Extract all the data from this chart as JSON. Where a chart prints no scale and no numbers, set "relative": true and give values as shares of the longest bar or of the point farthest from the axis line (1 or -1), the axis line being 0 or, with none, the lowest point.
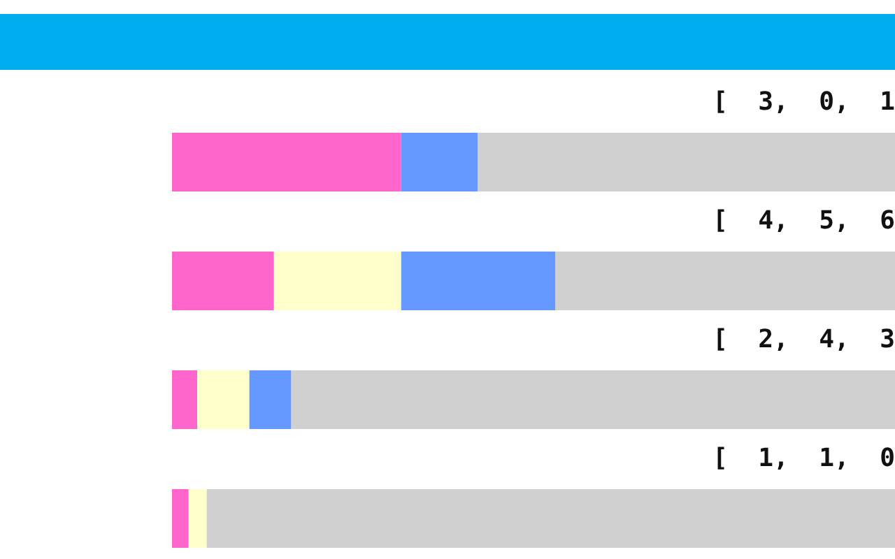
{
  "chart_data": {
    "type": "bar",
    "orientation": "horizontal",
    "stacked": true,
    "relative": true,
    "legend": false,
    "categories": [
      null,
      null,
      null,
      null
    ],
    "series": [
      {
        "color": "#ff66cc",
        "values": [
          0.317,
          0.141,
          0.035,
          0.023
        ]
      },
      {
        "color": "#ffffcc",
        "values": [
          0,
          0.176,
          0.072,
          0.025
        ]
      },
      {
        "color": "#6699ff",
        "values": [
          0.106,
          0.213,
          0.058,
          0
        ]
      },
      {
        "color": "#d0d0d0",
        "values": [
          0.577,
          0.47,
          0.835,
          0.952
        ]
      }
    ],
    "annotations": [
      "[ 3, 0, 1",
      "[ 4, 5, 6",
      "[ 2, 4, 3",
      "[ 1, 1, 0"
    ]
  }
}
